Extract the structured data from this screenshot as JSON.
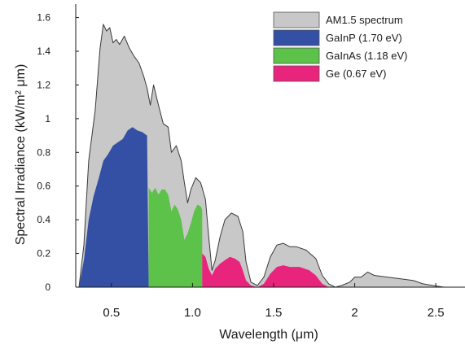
{
  "chart_data": {
    "type": "area",
    "xlabel": "Wavelength (μm)",
    "ylabel": "Spectral Irradiance (kW/m² μm)",
    "xlim": [
      0.28,
      2.68
    ],
    "ylim": [
      0,
      1.68
    ],
    "x_ticks": [
      0.5,
      1.0,
      1.5,
      2.0,
      2.5
    ],
    "x_tick_labels": [
      "0.5",
      "1.0",
      "1.5",
      "2",
      "2.5"
    ],
    "y_ticks": [
      0,
      0.2,
      0.4,
      0.6,
      0.8,
      1.0,
      1.2,
      1.4,
      1.6
    ],
    "y_tick_labels": [
      "0",
      "0.2",
      "0.4",
      "0.6",
      "0.8",
      "1",
      "1.2",
      "1.4",
      "1.6"
    ],
    "grid": false,
    "legend_position": "top-right",
    "series": [
      {
        "name": "AM1.5 spectrum",
        "color": "#c8c8c8",
        "points": [
          [
            0.3,
            0.0
          ],
          [
            0.33,
            0.25
          ],
          [
            0.36,
            0.75
          ],
          [
            0.4,
            1.05
          ],
          [
            0.43,
            1.42
          ],
          [
            0.45,
            1.56
          ],
          [
            0.47,
            1.52
          ],
          [
            0.49,
            1.54
          ],
          [
            0.51,
            1.45
          ],
          [
            0.53,
            1.47
          ],
          [
            0.55,
            1.44
          ],
          [
            0.58,
            1.49
          ],
          [
            0.61,
            1.42
          ],
          [
            0.64,
            1.37
          ],
          [
            0.67,
            1.33
          ],
          [
            0.7,
            1.25
          ],
          [
            0.72,
            1.18
          ],
          [
            0.74,
            1.08
          ],
          [
            0.76,
            1.2
          ],
          [
            0.79,
            1.08
          ],
          [
            0.82,
            0.97
          ],
          [
            0.85,
            0.95
          ],
          [
            0.87,
            0.8
          ],
          [
            0.9,
            0.84
          ],
          [
            0.93,
            0.75
          ],
          [
            0.95,
            0.62
          ],
          [
            0.97,
            0.5
          ],
          [
            0.99,
            0.58
          ],
          [
            1.02,
            0.65
          ],
          [
            1.05,
            0.62
          ],
          [
            1.08,
            0.52
          ],
          [
            1.1,
            0.3
          ],
          [
            1.12,
            0.1
          ],
          [
            1.14,
            0.16
          ],
          [
            1.17,
            0.3
          ],
          [
            1.2,
            0.4
          ],
          [
            1.24,
            0.44
          ],
          [
            1.28,
            0.42
          ],
          [
            1.31,
            0.33
          ],
          [
            1.33,
            0.15
          ],
          [
            1.36,
            0.03
          ],
          [
            1.4,
            0.01
          ],
          [
            1.44,
            0.06
          ],
          [
            1.48,
            0.18
          ],
          [
            1.52,
            0.25
          ],
          [
            1.56,
            0.26
          ],
          [
            1.6,
            0.24
          ],
          [
            1.64,
            0.24
          ],
          [
            1.7,
            0.22
          ],
          [
            1.76,
            0.17
          ],
          [
            1.8,
            0.07
          ],
          [
            1.84,
            0.02
          ],
          [
            1.88,
            0.0
          ],
          [
            1.92,
            0.01
          ],
          [
            1.97,
            0.03
          ],
          [
            2.0,
            0.06
          ],
          [
            2.04,
            0.06
          ],
          [
            2.08,
            0.09
          ],
          [
            2.12,
            0.07
          ],
          [
            2.2,
            0.06
          ],
          [
            2.28,
            0.05
          ],
          [
            2.36,
            0.04
          ],
          [
            2.42,
            0.02
          ],
          [
            2.48,
            0.01
          ],
          [
            2.55,
            0.0
          ]
        ]
      },
      {
        "name": "GaInP (1.70 eV)",
        "color": "#3350a4",
        "points": [
          [
            0.3,
            0.0
          ],
          [
            0.33,
            0.16
          ],
          [
            0.36,
            0.4
          ],
          [
            0.39,
            0.54
          ],
          [
            0.42,
            0.64
          ],
          [
            0.45,
            0.75
          ],
          [
            0.48,
            0.79
          ],
          [
            0.51,
            0.84
          ],
          [
            0.54,
            0.86
          ],
          [
            0.57,
            0.88
          ],
          [
            0.6,
            0.93
          ],
          [
            0.63,
            0.95
          ],
          [
            0.66,
            0.93
          ],
          [
            0.69,
            0.92
          ],
          [
            0.72,
            0.9
          ],
          [
            0.73,
            0.0
          ]
        ]
      },
      {
        "name": "GaInAs (1.18 eV)",
        "color": "#5cc24a",
        "points": [
          [
            0.73,
            0.0
          ],
          [
            0.73,
            0.59
          ],
          [
            0.75,
            0.56
          ],
          [
            0.77,
            0.59
          ],
          [
            0.79,
            0.55
          ],
          [
            0.81,
            0.58
          ],
          [
            0.83,
            0.58
          ],
          [
            0.85,
            0.55
          ],
          [
            0.87,
            0.45
          ],
          [
            0.89,
            0.49
          ],
          [
            0.91,
            0.46
          ],
          [
            0.93,
            0.4
          ],
          [
            0.95,
            0.28
          ],
          [
            0.97,
            0.32
          ],
          [
            0.99,
            0.38
          ],
          [
            1.01,
            0.45
          ],
          [
            1.03,
            0.49
          ],
          [
            1.05,
            0.48
          ],
          [
            1.06,
            0.46
          ],
          [
            1.06,
            0.0
          ]
        ]
      },
      {
        "name": "Ge (0.67 eV)",
        "color": "#e8247c",
        "points": [
          [
            1.06,
            0.0
          ],
          [
            1.06,
            0.2
          ],
          [
            1.08,
            0.18
          ],
          [
            1.1,
            0.11
          ],
          [
            1.12,
            0.07
          ],
          [
            1.14,
            0.11
          ],
          [
            1.17,
            0.14
          ],
          [
            1.2,
            0.16
          ],
          [
            1.23,
            0.18
          ],
          [
            1.26,
            0.17
          ],
          [
            1.29,
            0.15
          ],
          [
            1.31,
            0.1
          ],
          [
            1.33,
            0.04
          ],
          [
            1.36,
            0.01
          ],
          [
            1.4,
            0.0
          ],
          [
            1.44,
            0.02
          ],
          [
            1.48,
            0.08
          ],
          [
            1.52,
            0.12
          ],
          [
            1.56,
            0.13
          ],
          [
            1.6,
            0.12
          ],
          [
            1.66,
            0.12
          ],
          [
            1.72,
            0.1
          ],
          [
            1.76,
            0.07
          ],
          [
            1.8,
            0.02
          ],
          [
            1.84,
            0.0
          ]
        ]
      }
    ]
  }
}
